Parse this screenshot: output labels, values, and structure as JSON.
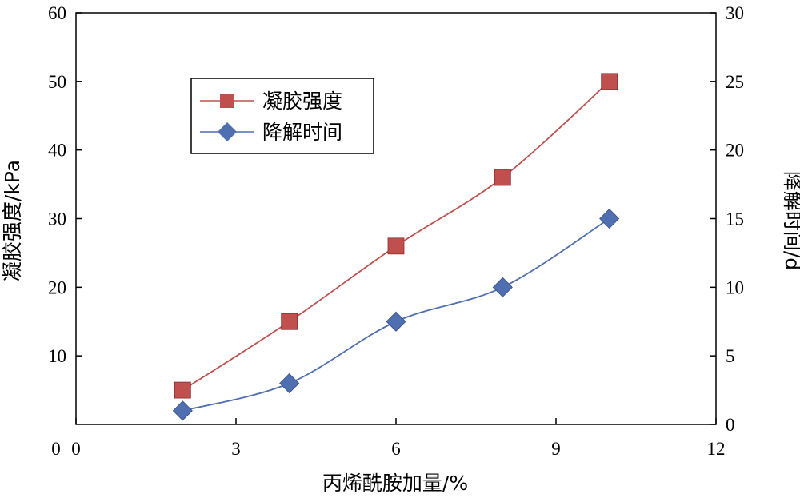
{
  "chart_data": {
    "type": "line",
    "x": [
      2,
      4,
      6,
      8,
      10
    ],
    "xlabel": "丙烯酰胺加量/%",
    "ylabel": "凝胶强度/kPa",
    "y2label": "降解时间/d",
    "xlim": [
      0,
      12
    ],
    "ylim": [
      0,
      60
    ],
    "y2lim": [
      0,
      30
    ],
    "xticks": [
      0,
      3,
      6,
      9,
      12
    ],
    "yticks": [
      10,
      20,
      30,
      40,
      50,
      60
    ],
    "y0_label": "0",
    "y2ticks": [
      0,
      5,
      10,
      15,
      20,
      25,
      30
    ],
    "grid": false,
    "legend_position": "top-left",
    "series": [
      {
        "name": "凝胶强度",
        "axis": "left",
        "values": [
          5,
          15,
          26,
          36,
          50
        ],
        "color": "#c0504d",
        "marker": "square"
      },
      {
        "name": "降解时间",
        "axis": "right",
        "values": [
          1,
          3,
          7.5,
          10,
          15
        ],
        "color": "#4f6fb0",
        "marker": "diamond"
      }
    ]
  }
}
